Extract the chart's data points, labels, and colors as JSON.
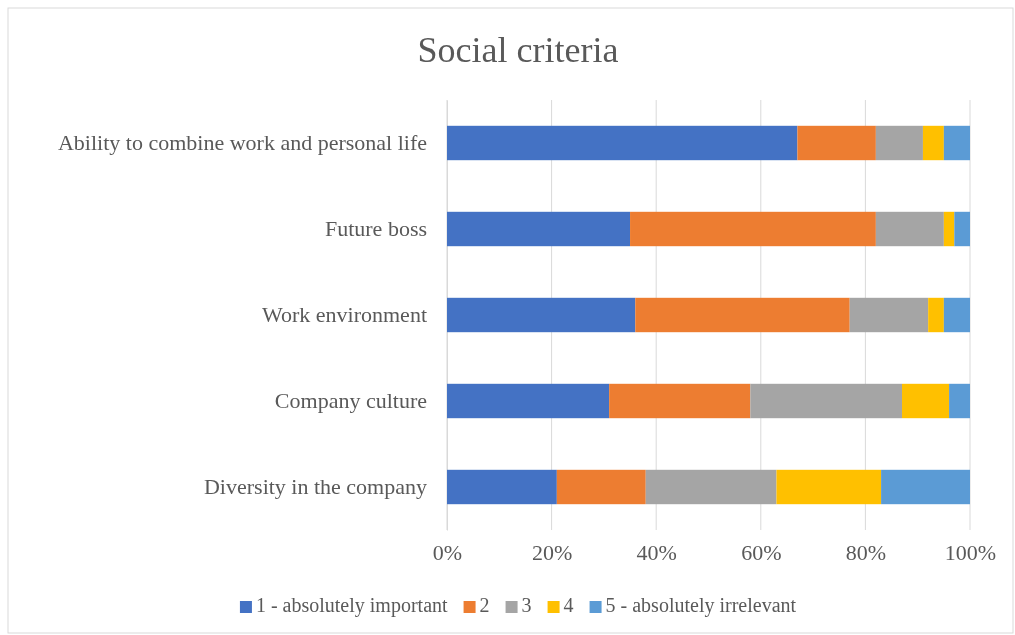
{
  "chart_data": {
    "type": "bar",
    "title": "Social criteria",
    "orientation": "horizontal",
    "stacked": true,
    "categories": [
      "Ability to combine work and personal life",
      "Future boss",
      "Work environment",
      "Company culture",
      "Diversity in the company"
    ],
    "series": [
      {
        "name": "1 - absolutely important",
        "color": "#4472c4",
        "values": [
          67,
          35,
          36,
          31,
          21
        ]
      },
      {
        "name": "2",
        "color": "#ed7d31",
        "values": [
          15,
          47,
          41,
          27,
          17
        ]
      },
      {
        "name": "3",
        "color": "#a5a5a5",
        "values": [
          9,
          13,
          15,
          29,
          25
        ]
      },
      {
        "name": "4",
        "color": "#ffc000",
        "values": [
          4,
          2,
          3,
          9,
          20
        ]
      },
      {
        "name": "5 - absolutely irrelevant",
        "color": "#5b9bd5",
        "values": [
          5,
          3,
          5,
          4,
          17
        ]
      }
    ],
    "xlim": [
      0,
      100
    ],
    "xticks": [
      {
        "value": 0,
        "label": "0%"
      },
      {
        "value": 20,
        "label": "20%"
      },
      {
        "value": 40,
        "label": "40%"
      },
      {
        "value": 60,
        "label": "60%"
      },
      {
        "value": 80,
        "label": "80%"
      },
      {
        "value": 100,
        "label": "100%"
      }
    ],
    "grid": "x",
    "legend": "bottom"
  }
}
